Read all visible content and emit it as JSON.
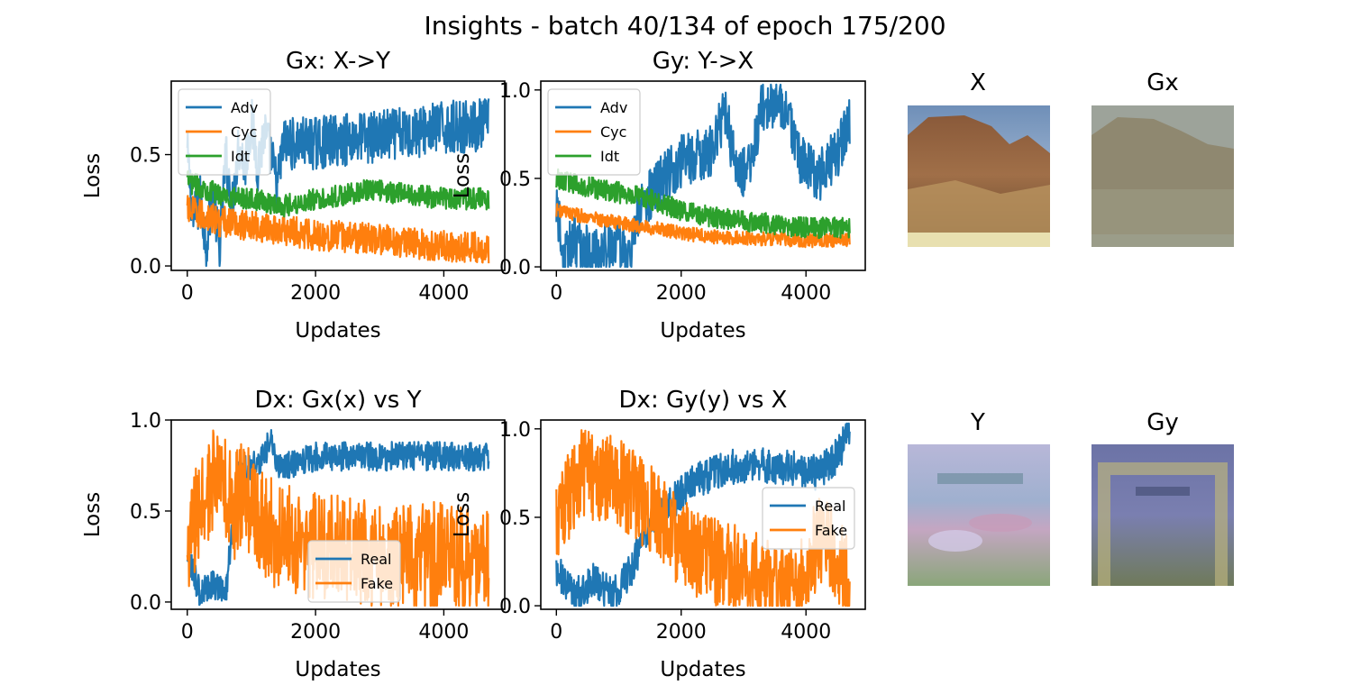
{
  "suptitle": "Insights - batch 40/134 of epoch 175/200",
  "colors": {
    "blue": "#1f77b4",
    "orange": "#ff7f0e",
    "green": "#2ca02c"
  },
  "chart_data": [
    {
      "type": "line",
      "title": "Gx: X->Y",
      "xlabel": "Updates",
      "ylabel": "Loss",
      "xlim": [
        0,
        4700
      ],
      "ylim": [
        -0.02,
        0.83
      ],
      "xticks": [
        "0",
        "2000",
        "4000"
      ],
      "yticks": [
        "0.0",
        "0.5"
      ],
      "legend": "top-left",
      "series": [
        {
          "name": "Adv",
          "color": "#1f77b4",
          "points": [
            [
              0,
              0.5
            ],
            [
              100,
              0.2
            ],
            [
              200,
              0.3
            ],
            [
              300,
              0.1
            ],
            [
              400,
              0.35
            ],
            [
              500,
              0.05
            ],
            [
              600,
              0.5
            ],
            [
              700,
              0.25
            ],
            [
              800,
              0.55
            ],
            [
              900,
              0.45
            ],
            [
              1000,
              0.65
            ],
            [
              1100,
              0.45
            ],
            [
              1200,
              0.6
            ],
            [
              1300,
              0.5
            ],
            [
              1400,
              0.35
            ],
            [
              1500,
              0.55
            ],
            [
              2000,
              0.55
            ],
            [
              2500,
              0.57
            ],
            [
              3000,
              0.58
            ],
            [
              3500,
              0.6
            ],
            [
              4000,
              0.62
            ],
            [
              4500,
              0.63
            ],
            [
              4700,
              0.64
            ]
          ],
          "noise": 0.12
        },
        {
          "name": "Cyc",
          "color": "#ff7f0e",
          "points": [
            [
              0,
              0.25
            ],
            [
              500,
              0.2
            ],
            [
              1000,
              0.18
            ],
            [
              1500,
              0.16
            ],
            [
              2000,
              0.14
            ],
            [
              2500,
              0.13
            ],
            [
              3000,
              0.12
            ],
            [
              3500,
              0.1
            ],
            [
              4000,
              0.09
            ],
            [
              4700,
              0.08
            ]
          ],
          "noise": 0.07
        },
        {
          "name": "Idt",
          "color": "#2ca02c",
          "points": [
            [
              0,
              0.38
            ],
            [
              500,
              0.32
            ],
            [
              1000,
              0.3
            ],
            [
              1500,
              0.27
            ],
            [
              2000,
              0.3
            ],
            [
              2500,
              0.32
            ],
            [
              2800,
              0.34
            ],
            [
              3200,
              0.33
            ],
            [
              3600,
              0.32
            ],
            [
              4000,
              0.3
            ],
            [
              4700,
              0.3
            ]
          ],
          "noise": 0.05
        }
      ]
    },
    {
      "type": "line",
      "title": "Gy: Y->X",
      "xlabel": "Updates",
      "ylabel": "Loss",
      "xlim": [
        0,
        4700
      ],
      "ylim": [
        -0.02,
        1.05
      ],
      "xticks": [
        "0",
        "2000",
        "4000"
      ],
      "yticks": [
        "0.0",
        "0.5",
        "1.0"
      ],
      "legend": "top-left",
      "series": [
        {
          "name": "Adv",
          "color": "#1f77b4",
          "points": [
            [
              0,
              0.4
            ],
            [
              100,
              0.05
            ],
            [
              300,
              0.15
            ],
            [
              600,
              0.05
            ],
            [
              900,
              0.15
            ],
            [
              1200,
              0.05
            ],
            [
              1300,
              0.3
            ],
            [
              1600,
              0.45
            ],
            [
              2000,
              0.6
            ],
            [
              2500,
              0.65
            ],
            [
              2700,
              0.9
            ],
            [
              2900,
              0.5
            ],
            [
              3100,
              0.55
            ],
            [
              3300,
              0.92
            ],
            [
              3400,
              0.9
            ],
            [
              3700,
              0.9
            ],
            [
              3900,
              0.6
            ],
            [
              4200,
              0.5
            ],
            [
              4500,
              0.65
            ],
            [
              4700,
              0.8
            ]
          ],
          "noise": 0.15
        },
        {
          "name": "Cyc",
          "color": "#ff7f0e",
          "points": [
            [
              0,
              0.32
            ],
            [
              500,
              0.28
            ],
            [
              1000,
              0.25
            ],
            [
              1500,
              0.22
            ],
            [
              2000,
              0.19
            ],
            [
              2500,
              0.17
            ],
            [
              3000,
              0.16
            ],
            [
              3500,
              0.16
            ],
            [
              4000,
              0.15
            ],
            [
              4700,
              0.15
            ]
          ],
          "noise": 0.04
        },
        {
          "name": "Idt",
          "color": "#2ca02c",
          "points": [
            [
              0,
              0.5
            ],
            [
              500,
              0.45
            ],
            [
              1000,
              0.42
            ],
            [
              1500,
              0.38
            ],
            [
              2000,
              0.32
            ],
            [
              2500,
              0.28
            ],
            [
              3000,
              0.26
            ],
            [
              3500,
              0.24
            ],
            [
              4000,
              0.22
            ],
            [
              4700,
              0.22
            ]
          ],
          "noise": 0.06
        }
      ]
    },
    {
      "type": "line",
      "title": "Dx: Gx(x) vs Y",
      "xlabel": "Updates",
      "ylabel": "Loss",
      "xlim": [
        0,
        4700
      ],
      "ylim": [
        -0.04,
        1.0
      ],
      "xticks": [
        "0",
        "2000",
        "4000"
      ],
      "yticks": [
        "0.0",
        "0.5",
        "1.0"
      ],
      "legend": "lower center",
      "series": [
        {
          "name": "Real",
          "color": "#1f77b4",
          "points": [
            [
              0,
              0.25
            ],
            [
              200,
              0.05
            ],
            [
              400,
              0.1
            ],
            [
              600,
              0.05
            ],
            [
              700,
              0.4
            ],
            [
              800,
              0.7
            ],
            [
              1000,
              0.75
            ],
            [
              1200,
              0.8
            ],
            [
              1300,
              0.9
            ],
            [
              1400,
              0.75
            ],
            [
              1600,
              0.75
            ],
            [
              2000,
              0.8
            ],
            [
              2500,
              0.8
            ],
            [
              3000,
              0.8
            ],
            [
              3500,
              0.8
            ],
            [
              4000,
              0.8
            ],
            [
              4700,
              0.8
            ]
          ],
          "noise": 0.08
        },
        {
          "name": "Fake",
          "color": "#ff7f0e",
          "points": [
            [
              0,
              0.3
            ],
            [
              300,
              0.6
            ],
            [
              500,
              0.7
            ],
            [
              700,
              0.5
            ],
            [
              900,
              0.6
            ],
            [
              1200,
              0.4
            ],
            [
              1500,
              0.35
            ],
            [
              2000,
              0.3
            ],
            [
              2500,
              0.28
            ],
            [
              3000,
              0.26
            ],
            [
              3500,
              0.25
            ],
            [
              4000,
              0.25
            ],
            [
              4700,
              0.2
            ]
          ],
          "noise": 0.3
        }
      ]
    },
    {
      "type": "line",
      "title": "Dx: Gy(y) vs X",
      "xlabel": "Updates",
      "ylabel": "Loss",
      "xlim": [
        0,
        4700
      ],
      "ylim": [
        -0.02,
        1.05
      ],
      "xticks": [
        "0",
        "2000",
        "4000"
      ],
      "yticks": [
        "0.0",
        "0.5",
        "1.0"
      ],
      "legend": "center-right",
      "series": [
        {
          "name": "Real",
          "color": "#1f77b4",
          "points": [
            [
              0,
              0.2
            ],
            [
              300,
              0.05
            ],
            [
              600,
              0.15
            ],
            [
              900,
              0.05
            ],
            [
              1200,
              0.2
            ],
            [
              1400,
              0.4
            ],
            [
              1900,
              0.6
            ],
            [
              2200,
              0.7
            ],
            [
              2700,
              0.78
            ],
            [
              3200,
              0.8
            ],
            [
              3800,
              0.78
            ],
            [
              4200,
              0.75
            ],
            [
              4500,
              0.85
            ],
            [
              4700,
              0.98
            ]
          ],
          "noise": 0.1
        },
        {
          "name": "Fake",
          "color": "#ff7f0e",
          "points": [
            [
              0,
              0.5
            ],
            [
              400,
              0.75
            ],
            [
              1000,
              0.7
            ],
            [
              1500,
              0.55
            ],
            [
              2000,
              0.35
            ],
            [
              2500,
              0.25
            ],
            [
              3000,
              0.2
            ],
            [
              3400,
              0.15
            ],
            [
              3500,
              0.08
            ],
            [
              3600,
              0.08
            ],
            [
              3900,
              0.1
            ],
            [
              4100,
              0.3
            ],
            [
              4300,
              0.4
            ],
            [
              4600,
              0.2
            ],
            [
              4700,
              0.1
            ]
          ],
          "noise": 0.25
        }
      ]
    }
  ],
  "images": [
    {
      "title": "X",
      "kind": "canyon"
    },
    {
      "title": "Gx",
      "kind": "canyon-faded"
    },
    {
      "title": "Y",
      "kind": "monet"
    },
    {
      "title": "Gy",
      "kind": "monet-dark"
    }
  ]
}
